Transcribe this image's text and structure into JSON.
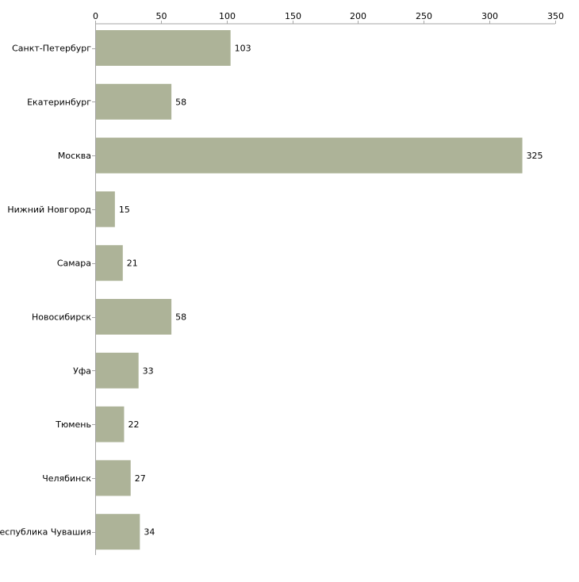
{
  "chart_data": {
    "type": "bar",
    "orientation": "horizontal",
    "title": "",
    "xlabel": "",
    "ylabel": "",
    "xlim": [
      0,
      350
    ],
    "x_ticks": [
      0,
      50,
      100,
      150,
      200,
      250,
      300,
      350
    ],
    "x_tick_labels": [
      "0",
      "50",
      "100",
      "150",
      "200",
      "250",
      "300",
      "350"
    ],
    "axis_position": "top",
    "grid": false,
    "legend": "none",
    "categories": [
      "Санкт-Петербург",
      "Екатеринбург",
      "Москва",
      "Нижний Новгород",
      "Самара",
      "Новосибирск",
      "Уфа",
      "Тюмень",
      "Челябинск",
      "Республика Чувашия"
    ],
    "values": [
      103,
      58,
      325,
      15,
      21,
      58,
      33,
      22,
      27,
      34
    ],
    "value_labels": [
      "103",
      "58",
      "325",
      "15",
      "21",
      "58",
      "33",
      "22",
      "27",
      "34"
    ],
    "colors": {
      "bar": "#adb398",
      "axis": "#a6a6a6",
      "text": "#000000"
    }
  }
}
